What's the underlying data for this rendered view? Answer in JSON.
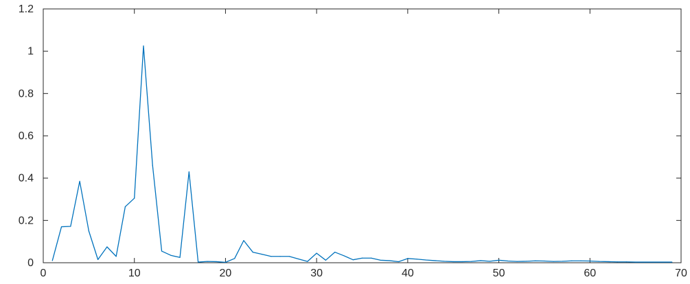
{
  "chart_data": {
    "type": "line",
    "title": "",
    "xlabel": "",
    "ylabel": "",
    "xlim": [
      0,
      70
    ],
    "ylim": [
      0,
      1.2
    ],
    "xticks": [
      0,
      10,
      20,
      30,
      40,
      50,
      60,
      70
    ],
    "yticks": [
      0,
      0.2,
      0.4,
      0.6,
      0.8,
      1,
      1.2
    ],
    "xtick_labels": [
      "0",
      "10",
      "20",
      "30",
      "40",
      "50",
      "60",
      "70"
    ],
    "ytick_labels": [
      "0",
      "0.2",
      "0.4",
      "0.6",
      "0.8",
      "1",
      "1.2"
    ],
    "grid": false,
    "line_color": "#0072BD",
    "axis_color": "#262626",
    "series": [
      {
        "x": [
          1,
          2,
          3,
          4,
          5,
          6,
          7,
          8,
          9,
          10,
          11,
          12,
          13,
          14,
          15,
          16,
          17,
          18,
          19,
          20,
          21,
          22,
          23,
          24,
          25,
          26,
          27,
          28,
          29,
          30,
          31,
          32,
          33,
          34,
          35,
          36,
          37,
          38,
          39,
          40,
          41,
          42,
          43,
          44,
          45,
          46,
          47,
          48,
          49,
          50,
          51,
          52,
          53,
          54,
          55,
          56,
          57,
          58,
          59,
          60,
          61,
          62,
          63,
          64,
          65,
          66,
          67,
          68,
          69
        ],
        "y": [
          0.01,
          0.17,
          0.172,
          0.385,
          0.15,
          0.015,
          0.075,
          0.03,
          0.265,
          0.305,
          1.025,
          0.46,
          0.055,
          0.035,
          0.025,
          0.43,
          0.003,
          0.006,
          0.005,
          0.002,
          0.02,
          0.105,
          0.05,
          0.04,
          0.03,
          0.03,
          0.03,
          0.018,
          0.006,
          0.045,
          0.012,
          0.05,
          0.033,
          0.014,
          0.022,
          0.022,
          0.012,
          0.01,
          0.005,
          0.02,
          0.017,
          0.013,
          0.01,
          0.007,
          0.005,
          0.005,
          0.006,
          0.01,
          0.007,
          0.012,
          0.008,
          0.006,
          0.007,
          0.009,
          0.008,
          0.006,
          0.007,
          0.009,
          0.009,
          0.008,
          0.006,
          0.005,
          0.004,
          0.004,
          0.003,
          0.003,
          0.003,
          0.003,
          0.003
        ]
      }
    ]
  }
}
